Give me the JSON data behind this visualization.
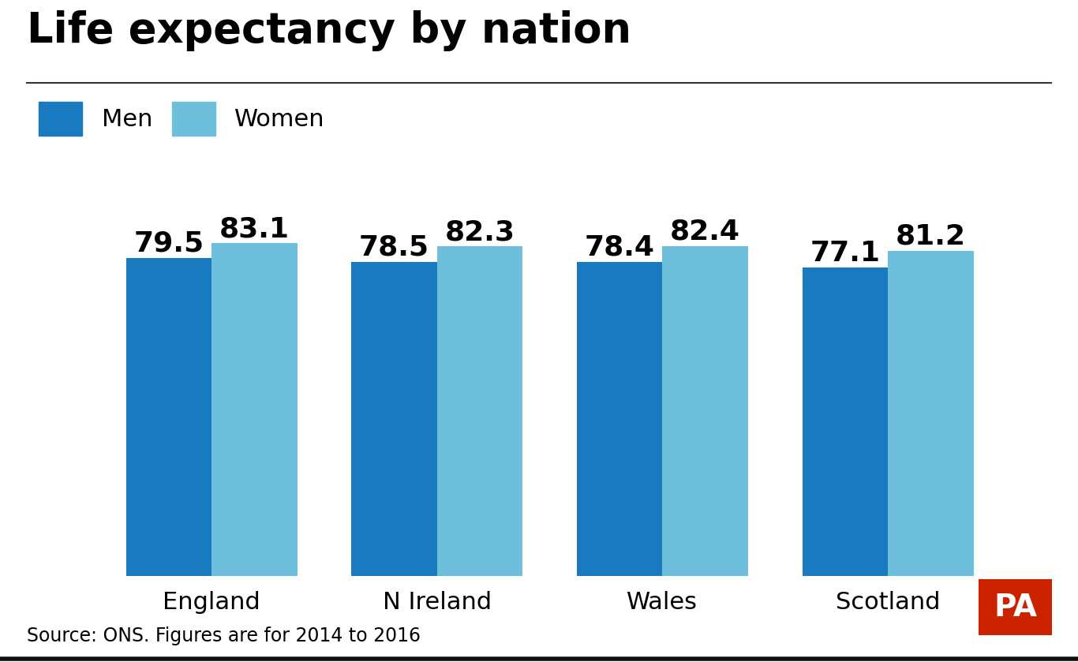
{
  "title": "Life expectancy by nation",
  "nations": [
    "England",
    "N Ireland",
    "Wales",
    "Scotland"
  ],
  "men_values": [
    79.5,
    78.5,
    78.4,
    77.1
  ],
  "women_values": [
    83.1,
    82.3,
    82.4,
    81.2
  ],
  "men_color": "#1a7abf",
  "women_color": "#6dbfdc",
  "background_color": "#ffffff",
  "ylim_min": 0,
  "ylim_max": 86,
  "source_text": "Source: ONS. Figures are for 2014 to 2016",
  "legend_men": "Men",
  "legend_women": "Women",
  "bar_width": 0.38,
  "label_fontsize": 26,
  "title_fontsize": 38,
  "nation_fontsize": 22,
  "source_fontsize": 17,
  "legend_fontsize": 22,
  "pa_color": "#cc2200"
}
